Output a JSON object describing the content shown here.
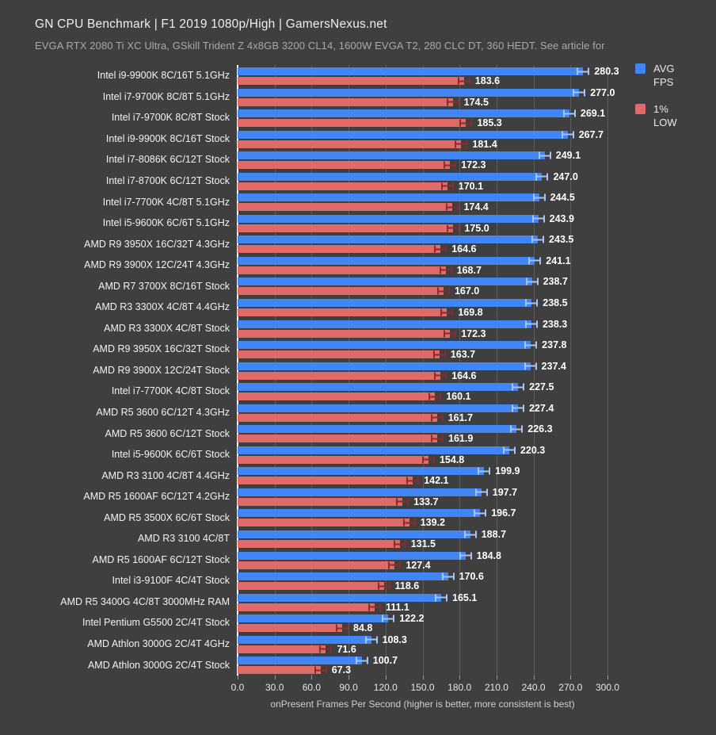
{
  "header": {
    "title": "GN CPU Benchmark | F1 2019 1080p/High | GamersNexus.net",
    "subtitle": "EVGA RTX 2080 Ti XC Ultra, GSkill Trident Z 4x8GB 3200 CL14, 1600W EVGA T2, 280 CLC DT, 360 HEDT. See article for"
  },
  "legend": {
    "avg": {
      "label": "AVG\nFPS",
      "color": "#4285f4"
    },
    "low": {
      "label": "1%\nLOW",
      "color": "#de6a6a"
    }
  },
  "colors": {
    "background": "#3f3f3f",
    "gridline": "#5c5c5c",
    "zero_axis": "#ffffff",
    "avg_bar": "#4285f4",
    "avg_whisker": "#a6c4f5",
    "low_bar": "#de6a6a",
    "low_whisker": "#8c2b2b",
    "value_label": "#ffffff"
  },
  "chart_data": {
    "type": "bar",
    "orientation": "horizontal",
    "title": "GN CPU Benchmark | F1 2019 1080p/High | GamersNexus.net",
    "xlabel": "onPresent Frames Per Second (higher is better, more consistent is best)",
    "ylabel": "",
    "xlim": [
      0,
      300
    ],
    "xticks": [
      "0.0",
      "30.0",
      "60.0",
      "90.0",
      "120.0",
      "150.0",
      "180.0",
      "210.0",
      "240.0",
      "270.0",
      "300.0"
    ],
    "grid": true,
    "error_bars": true,
    "legend_position": "top-right",
    "value_labels_decimals": 1,
    "categories": [
      "Intel i9-9900K 8C/16T 5.1GHz",
      "Intel i7-9700K 8C/8T 5.1GHz",
      "Intel i7-9700K 8C/8T Stock",
      "Intel i9-9900K 8C/16T Stock",
      "Intel i7-8086K 6C/12T Stock",
      "Intel i7-8700K 6C/12T Stock",
      "Intel i7-7700K 4C/8T 5.1GHz",
      "Intel i5-9600K 6C/6T 5.1GHz",
      "AMD R9 3950X 16C/32T 4.3GHz",
      "AMD R9 3900X 12C/24T 4.3GHz",
      "AMD R7 3700X 8C/16T Stock",
      "AMD R3 3300X 4C/8T 4.4GHz",
      "AMD R3 3300X 4C/8T Stock",
      "AMD R9 3950X 16C/32T Stock",
      "AMD R9 3900X 12C/24T Stock",
      "Intel i7-7700K 4C/8T Stock",
      "AMD R5 3600 6C/12T 4.3GHz",
      "AMD R5 3600 6C/12T Stock",
      "Intel i5-9600K 6C/6T Stock",
      "AMD R3 3100 4C/8T 4.4GHz",
      "AMD R5 1600AF 6C/12T 4.2GHz",
      "AMD R5 3500X 6C/6T Stock",
      "AMD R3 3100 4C/8T",
      "AMD R5 1600AF 6C/12T Stock",
      "Intel i3-9100F 4C/4T Stock",
      "AMD R5 3400G 4C/8T 3000MHz RAM",
      "Intel Pentium G5500 2C/4T Stock",
      "AMD Athlon 3000G 2C/4T 4GHz",
      "AMD Athlon 3000G 2C/4T Stock"
    ],
    "series": [
      {
        "name": "AVG FPS",
        "color": "#4285f4",
        "values": [
          280.3,
          277.0,
          269.1,
          267.7,
          249.1,
          247.0,
          244.5,
          243.9,
          243.5,
          241.1,
          238.7,
          238.5,
          238.3,
          237.8,
          237.4,
          227.5,
          227.4,
          226.3,
          220.3,
          199.9,
          197.7,
          196.7,
          188.7,
          184.8,
          170.6,
          165.1,
          122.2,
          108.3,
          100.7
        ]
      },
      {
        "name": "1% LOW",
        "color": "#de6a6a",
        "values": [
          183.6,
          174.5,
          185.3,
          181.4,
          172.3,
          170.1,
          174.4,
          175.0,
          164.6,
          168.7,
          167.0,
          169.8,
          172.3,
          163.7,
          164.6,
          160.1,
          161.7,
          161.9,
          154.8,
          142.1,
          133.7,
          139.2,
          131.5,
          127.4,
          118.6,
          111.1,
          84.8,
          71.6,
          67.3
        ]
      }
    ]
  }
}
